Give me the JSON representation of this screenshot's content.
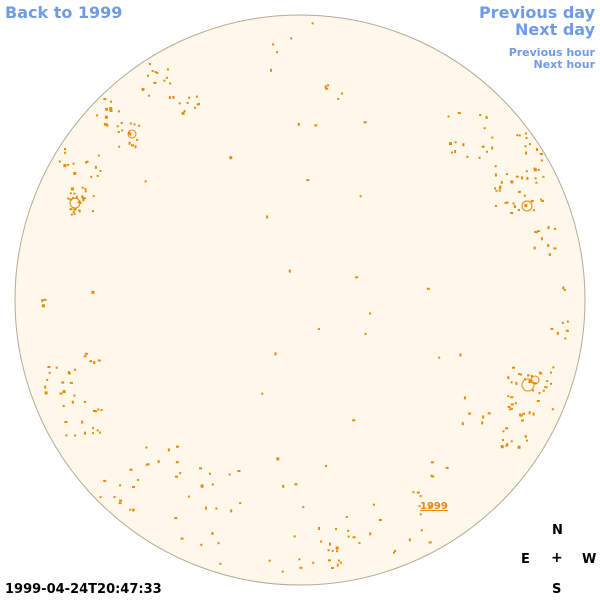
{
  "nav": {
    "back": "Back to 1999",
    "prev_day": "Previous day",
    "next_day": "Next day",
    "prev_hour": "Previous hour",
    "next_hour": "Next hour"
  },
  "disk": {
    "fill_color": "#fdf8ea",
    "border_color": "#b5aa96",
    "region_color": "#e8890c",
    "region_label": "1999"
  },
  "compass": {
    "north": "N",
    "south": "S",
    "east": "E",
    "west": "W",
    "center": "+"
  },
  "timestamp": "1999-04-24T20:47:33"
}
